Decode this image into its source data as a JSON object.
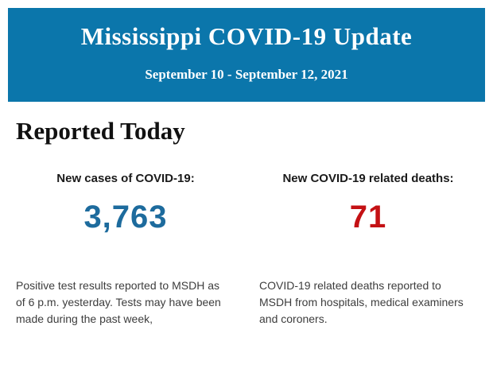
{
  "colors": {
    "page_bg": "#ffffff",
    "banner_bg": "#0b76ab",
    "banner_text": "#ffffff",
    "heading_text": "#111111",
    "label_text": "#1a1a1a",
    "body_text": "#3d3d3d",
    "cases_number_color": "#1d6b9d",
    "deaths_number_color": "#c41114"
  },
  "banner": {
    "title": "Mississippi COVID-19 Update",
    "date_range": "September 10 - September 12, 2021"
  },
  "section": {
    "heading": "Reported Today"
  },
  "stats": {
    "cases": {
      "label": "New cases of COVID-19:",
      "value": "3,763",
      "description": "Positive test results reported to MSDH as\nof 6 p.m. yesterday. Tests may have been\nmade during the past week,"
    },
    "deaths": {
      "label": "New COVID-19 related deaths:",
      "value": "71",
      "description": "COVID-19 related deaths reported to\nMSDH from hospitals, medical examiners\nand coroners."
    }
  }
}
